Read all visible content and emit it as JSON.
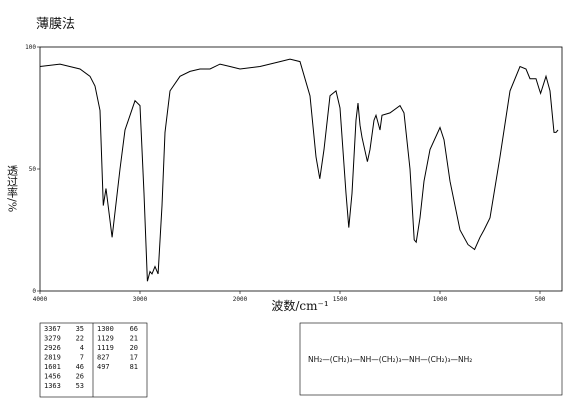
{
  "chart_data": {
    "type": "line",
    "title": "薄膜法",
    "x_label": "波数/cm⁻¹",
    "y_label": "透过率/%",
    "x": [
      4000,
      3800,
      3600,
      3500,
      3450,
      3400,
      3367,
      3340,
      3279,
      3200,
      3150,
      3050,
      3000,
      2960,
      2926,
      2900,
      2880,
      2850,
      2819,
      2780,
      2750,
      2700,
      2600,
      2500,
      2400,
      2300,
      2200,
      2100,
      2000,
      1900,
      1800,
      1750,
      1700,
      1650,
      1620,
      1601,
      1580,
      1550,
      1520,
      1500,
      1470,
      1456,
      1440,
      1420,
      1410,
      1400,
      1390,
      1363,
      1350,
      1330,
      1320,
      1300,
      1290,
      1250,
      1200,
      1180,
      1150,
      1129,
      1119,
      1100,
      1080,
      1050,
      1000,
      980,
      950,
      900,
      860,
      827,
      800,
      780,
      750,
      700,
      650,
      600,
      570,
      550,
      520,
      505,
      497,
      470,
      450,
      430,
      420,
      410
    ],
    "values": [
      92,
      93,
      91,
      88,
      84,
      74,
      35,
      42,
      22,
      50,
      66,
      78,
      76,
      40,
      4,
      8,
      7,
      10,
      7,
      35,
      65,
      82,
      88,
      90,
      91,
      91,
      93,
      92,
      91,
      92,
      94,
      95,
      94,
      80,
      55,
      46,
      58,
      80,
      82,
      75,
      40,
      26,
      40,
      70,
      77,
      68,
      63,
      53,
      58,
      70,
      72,
      66,
      72,
      73,
      76,
      73,
      50,
      21,
      20,
      30,
      45,
      58,
      67,
      62,
      45,
      25,
      19,
      17,
      22,
      25,
      30,
      55,
      82,
      92,
      91,
      87,
      87,
      83,
      81,
      88,
      82,
      65,
      65,
      66
    ],
    "color": "#000000",
    "xlim": [
      4000,
      400
    ],
    "xticks": [
      4000,
      3000,
      2000,
      1500,
      1000,
      500
    ],
    "ylim": [
      0,
      100
    ],
    "yticks": [
      0,
      50,
      100
    ]
  },
  "peak_table": {
    "rows": [
      [
        3367,
        35,
        1300,
        66
      ],
      [
        3279,
        22,
        1129,
        21
      ],
      [
        2926,
        4,
        1119,
        20
      ],
      [
        2819,
        7,
        827,
        17
      ],
      [
        1601,
        46,
        497,
        81
      ],
      [
        1456,
        26,
        null,
        null
      ],
      [
        1363,
        53,
        null,
        null
      ]
    ]
  },
  "formula": {
    "parts": [
      "NH₂—(CH₂)₃—NH—(CH₂)₃—NH—(CH₂)₃—NH₂"
    ]
  }
}
